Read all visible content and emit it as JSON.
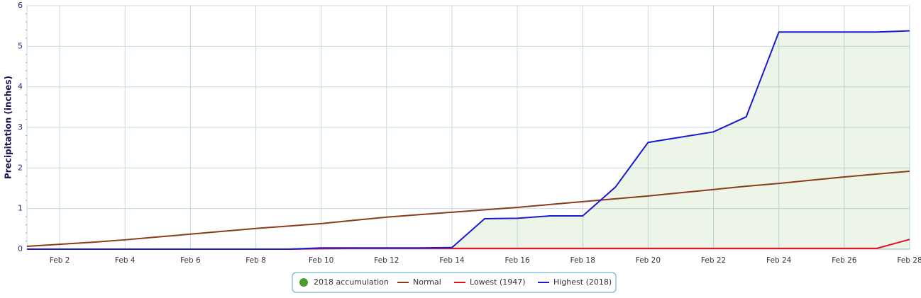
{
  "chart_data": {
    "type": "line",
    "y_label": "Precipitation (inches)",
    "categories": [
      null,
      "Feb 2",
      null,
      "Feb 4",
      null,
      "Feb 6",
      null,
      "Feb 8",
      null,
      "Feb 10",
      null,
      "Feb 12",
      null,
      "Feb 14",
      null,
      "Feb 16",
      null,
      "Feb 18",
      null,
      "Feb 20",
      null,
      "Feb 22",
      null,
      "Feb 24",
      null,
      "Feb 26",
      null,
      "Feb 28"
    ],
    "ylim": [
      0,
      6
    ],
    "yticks": [
      0,
      1,
      2,
      3,
      4,
      5,
      6
    ],
    "grid": true,
    "legend": "bottom",
    "series": [
      {
        "name": "2018 accumulation",
        "kind": "area",
        "color": "#4a9e2a",
        "values": [
          0,
          0,
          0,
          0,
          0,
          0,
          0,
          0,
          0,
          0.03,
          0.03,
          0.03,
          0.03,
          0.04,
          0.75,
          0.76,
          0.82,
          0.82,
          1.53,
          2.63,
          2.76,
          2.89,
          3.26,
          5.35,
          5.35,
          5.35,
          5.35,
          5.38
        ]
      },
      {
        "name": "Normal",
        "kind": "line",
        "color": "#8b3a1a",
        "values": [
          0.07,
          0.12,
          0.17,
          0.23,
          0.3,
          0.37,
          0.44,
          0.51,
          0.57,
          0.63,
          0.71,
          0.79,
          0.85,
          0.91,
          0.97,
          1.03,
          1.1,
          1.17,
          1.24,
          1.31,
          1.39,
          1.47,
          1.55,
          1.62,
          1.7,
          1.78,
          1.85,
          1.92
        ]
      },
      {
        "name": "Lowest (1947)",
        "kind": "line",
        "color": "#e0101e",
        "values": [
          0,
          0,
          0,
          0,
          0,
          0,
          0,
          0,
          0,
          0.01,
          0.02,
          0.02,
          0.02,
          0.02,
          0.02,
          0.02,
          0.02,
          0.02,
          0.02,
          0.02,
          0.02,
          0.02,
          0.02,
          0.02,
          0.02,
          0.02,
          0.02,
          0.24
        ]
      },
      {
        "name": "Highest (2018)",
        "kind": "line",
        "color": "#1a1ad0",
        "values": [
          0,
          0,
          0,
          0,
          0,
          0,
          0,
          0,
          0,
          0.03,
          0.03,
          0.03,
          0.03,
          0.04,
          0.75,
          0.76,
          0.82,
          0.82,
          1.53,
          2.63,
          2.76,
          2.89,
          3.26,
          5.35,
          5.35,
          5.35,
          5.35,
          5.38
        ]
      }
    ]
  }
}
